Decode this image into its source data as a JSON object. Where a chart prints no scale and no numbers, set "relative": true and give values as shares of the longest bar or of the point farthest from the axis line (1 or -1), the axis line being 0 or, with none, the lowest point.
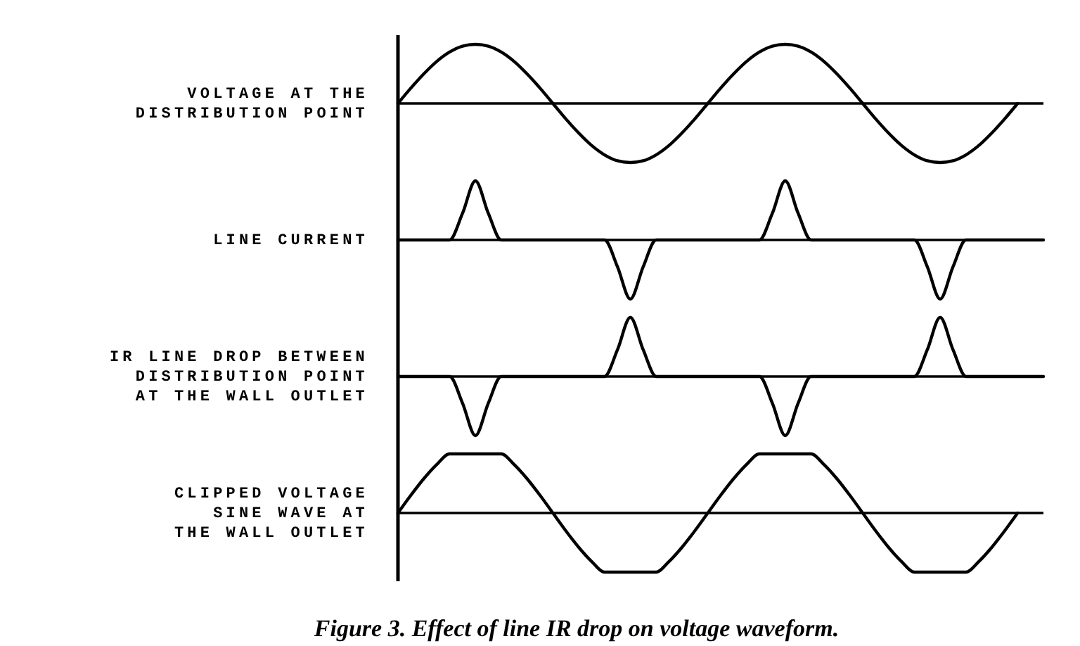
{
  "chart_data": [
    {
      "type": "line",
      "relative": true,
      "ylabel": "VOLTAGE AT THE\nDISTRIBUTION POINT",
      "categories": [
        null,
        null,
        null,
        null,
        null,
        null,
        null,
        null,
        null,
        null,
        null,
        null,
        null,
        null,
        null,
        null,
        null,
        null,
        null,
        null,
        null,
        null,
        null,
        null,
        null,
        null,
        null,
        null,
        null,
        null,
        null,
        null,
        null,
        null,
        null,
        null,
        null,
        null,
        null,
        null,
        null,
        null,
        null,
        null,
        null,
        null,
        null,
        null,
        null,
        null,
        null
      ],
      "series": [
        {
          "color": "#000000",
          "values": [
            0,
            0.26,
            0.5,
            0.71,
            0.87,
            0.97,
            1,
            0.97,
            0.87,
            0.71,
            0.5,
            0.26,
            0,
            -0.26,
            -0.5,
            -0.71,
            -0.87,
            -0.97,
            -1,
            -0.97,
            -0.87,
            -0.71,
            -0.5,
            -0.26,
            0,
            0.26,
            0.5,
            0.71,
            0.87,
            0.97,
            1,
            0.97,
            0.87,
            0.71,
            0.5,
            0.26,
            0,
            -0.26,
            -0.5,
            -0.71,
            -0.87,
            -0.97,
            -1,
            -0.97,
            -0.87,
            -0.71,
            -0.5,
            -0.26,
            0,
            null,
            null
          ]
        }
      ]
    },
    {
      "type": "line",
      "relative": true,
      "ylabel": "LINE CURRENT",
      "categories": [
        null,
        null,
        null,
        null,
        null,
        null,
        null,
        null,
        null,
        null,
        null,
        null,
        null,
        null,
        null,
        null,
        null,
        null,
        null,
        null,
        null,
        null,
        null,
        null,
        null,
        null,
        null,
        null,
        null,
        null,
        null,
        null,
        null,
        null,
        null,
        null,
        null,
        null,
        null,
        null,
        null,
        null,
        null,
        null,
        null,
        null,
        null,
        null,
        null,
        null,
        null
      ],
      "series": [
        {
          "color": "#000000",
          "values": [
            0,
            0,
            0,
            0,
            0,
            0.45,
            1,
            0.45,
            0,
            0,
            0,
            0,
            0,
            0,
            0,
            0,
            0,
            -0.45,
            -1,
            -0.45,
            0,
            0,
            0,
            0,
            0,
            0,
            0,
            0,
            0,
            0.45,
            1,
            0.45,
            0,
            0,
            0,
            0,
            0,
            0,
            0,
            0,
            0,
            -0.45,
            -1,
            -0.45,
            0,
            0,
            0,
            0,
            0,
            0,
            0
          ]
        }
      ]
    },
    {
      "type": "line",
      "relative": true,
      "ylabel": "IR LINE DROP BETWEEN\nDISTRIBUTION POINT\nAT THE WALL OUTLET",
      "categories": [
        null,
        null,
        null,
        null,
        null,
        null,
        null,
        null,
        null,
        null,
        null,
        null,
        null,
        null,
        null,
        null,
        null,
        null,
        null,
        null,
        null,
        null,
        null,
        null,
        null,
        null,
        null,
        null,
        null,
        null,
        null,
        null,
        null,
        null,
        null,
        null,
        null,
        null,
        null,
        null,
        null,
        null,
        null,
        null,
        null,
        null,
        null,
        null,
        null,
        null,
        null
      ],
      "series": [
        {
          "color": "#000000",
          "values": [
            0,
            0,
            0,
            0,
            0,
            -0.45,
            -1,
            -0.45,
            0,
            0,
            0,
            0,
            0,
            0,
            0,
            0,
            0,
            0.45,
            1,
            0.45,
            0,
            0,
            0,
            0,
            0,
            0,
            0,
            0,
            0,
            -0.45,
            -1,
            -0.45,
            0,
            0,
            0,
            0,
            0,
            0,
            0,
            0,
            0,
            0.45,
            1,
            0.45,
            0,
            0,
            0,
            0,
            0,
            0,
            0
          ]
        }
      ]
    },
    {
      "type": "line",
      "relative": true,
      "ylabel": "CLIPPED VOLTAGE\nSINE WAVE AT\nTHE WALL OUTLET",
      "title": "Figure 3. Effect of line IR drop on voltage waveform.",
      "categories": [
        null,
        null,
        null,
        null,
        null,
        null,
        null,
        null,
        null,
        null,
        null,
        null,
        null,
        null,
        null,
        null,
        null,
        null,
        null,
        null,
        null,
        null,
        null,
        null,
        null,
        null,
        null,
        null,
        null,
        null,
        null,
        null,
        null,
        null,
        null,
        null,
        null,
        null,
        null,
        null,
        null,
        null,
        null,
        null,
        null,
        null,
        null,
        null,
        null,
        null,
        null
      ],
      "series": [
        {
          "color": "#000000",
          "values": [
            0,
            0.3,
            0.58,
            0.82,
            1,
            1,
            1,
            1,
            1,
            0.82,
            0.58,
            0.3,
            0,
            -0.3,
            -0.58,
            -0.82,
            -1,
            -1,
            -1,
            -1,
            -1,
            -0.82,
            -0.58,
            -0.3,
            0,
            0.3,
            0.58,
            0.82,
            1,
            1,
            1,
            1,
            1,
            0.82,
            0.58,
            0.3,
            0,
            -0.3,
            -0.58,
            -0.82,
            -1,
            -1,
            -1,
            -1,
            -1,
            -0.82,
            -0.58,
            -0.3,
            0,
            null,
            null
          ]
        }
      ]
    }
  ]
}
